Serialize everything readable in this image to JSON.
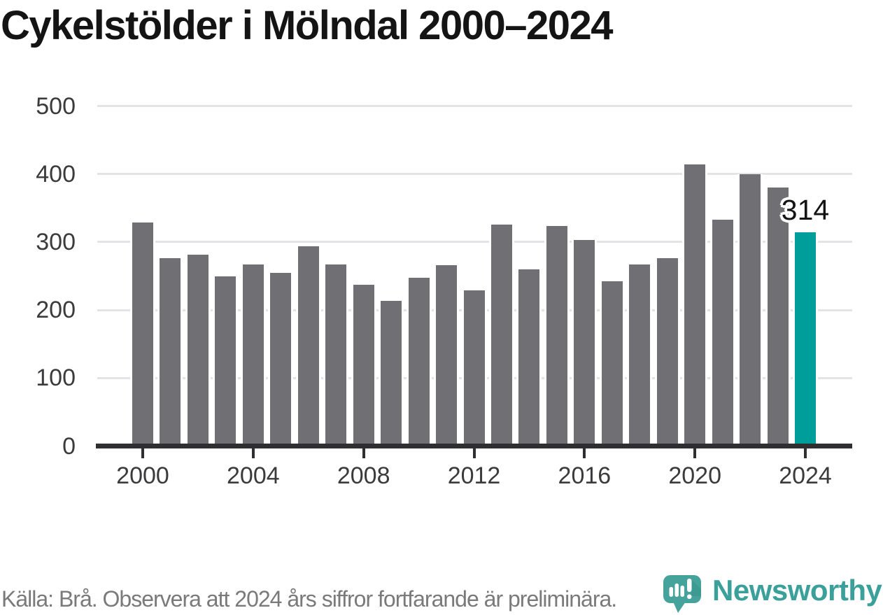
{
  "title": "Cykelstölder i Mölndal 2000–2024",
  "chart_data": {
    "type": "bar",
    "title": "Cykelstölder i Mölndal 2000–2024",
    "categories": [
      2000,
      2001,
      2002,
      2003,
      2004,
      2005,
      2006,
      2007,
      2008,
      2009,
      2010,
      2011,
      2012,
      2013,
      2014,
      2015,
      2016,
      2017,
      2018,
      2019,
      2020,
      2021,
      2022,
      2023,
      2024
    ],
    "values": [
      329,
      276,
      281,
      249,
      267,
      255,
      294,
      267,
      237,
      213,
      247,
      266,
      229,
      326,
      260,
      324,
      303,
      242,
      267,
      276,
      414,
      333,
      400,
      380,
      314
    ],
    "xlabel": "",
    "ylabel": "",
    "ylim": [
      0,
      500
    ],
    "y_ticks": [
      0,
      100,
      200,
      300,
      400,
      500
    ],
    "x_tick_labels": [
      "2000",
      "2004",
      "2008",
      "2012",
      "2016",
      "2020",
      "2024"
    ],
    "grid": "horizontal",
    "legend": "none",
    "bar_color": "#6F6F74",
    "highlight_color": "#009E9B",
    "highlight_year": 2024,
    "annotation": {
      "text": "314",
      "year": 2024
    }
  },
  "footer": {
    "source_note": "Källa: Brå. Observera att 2024 års siffror fortfarande är preliminära."
  },
  "branding": {
    "name": "Newsworthy",
    "logo_color": "#3AA099",
    "icon": "newsworthy-speech-bubble-bar-chart"
  }
}
